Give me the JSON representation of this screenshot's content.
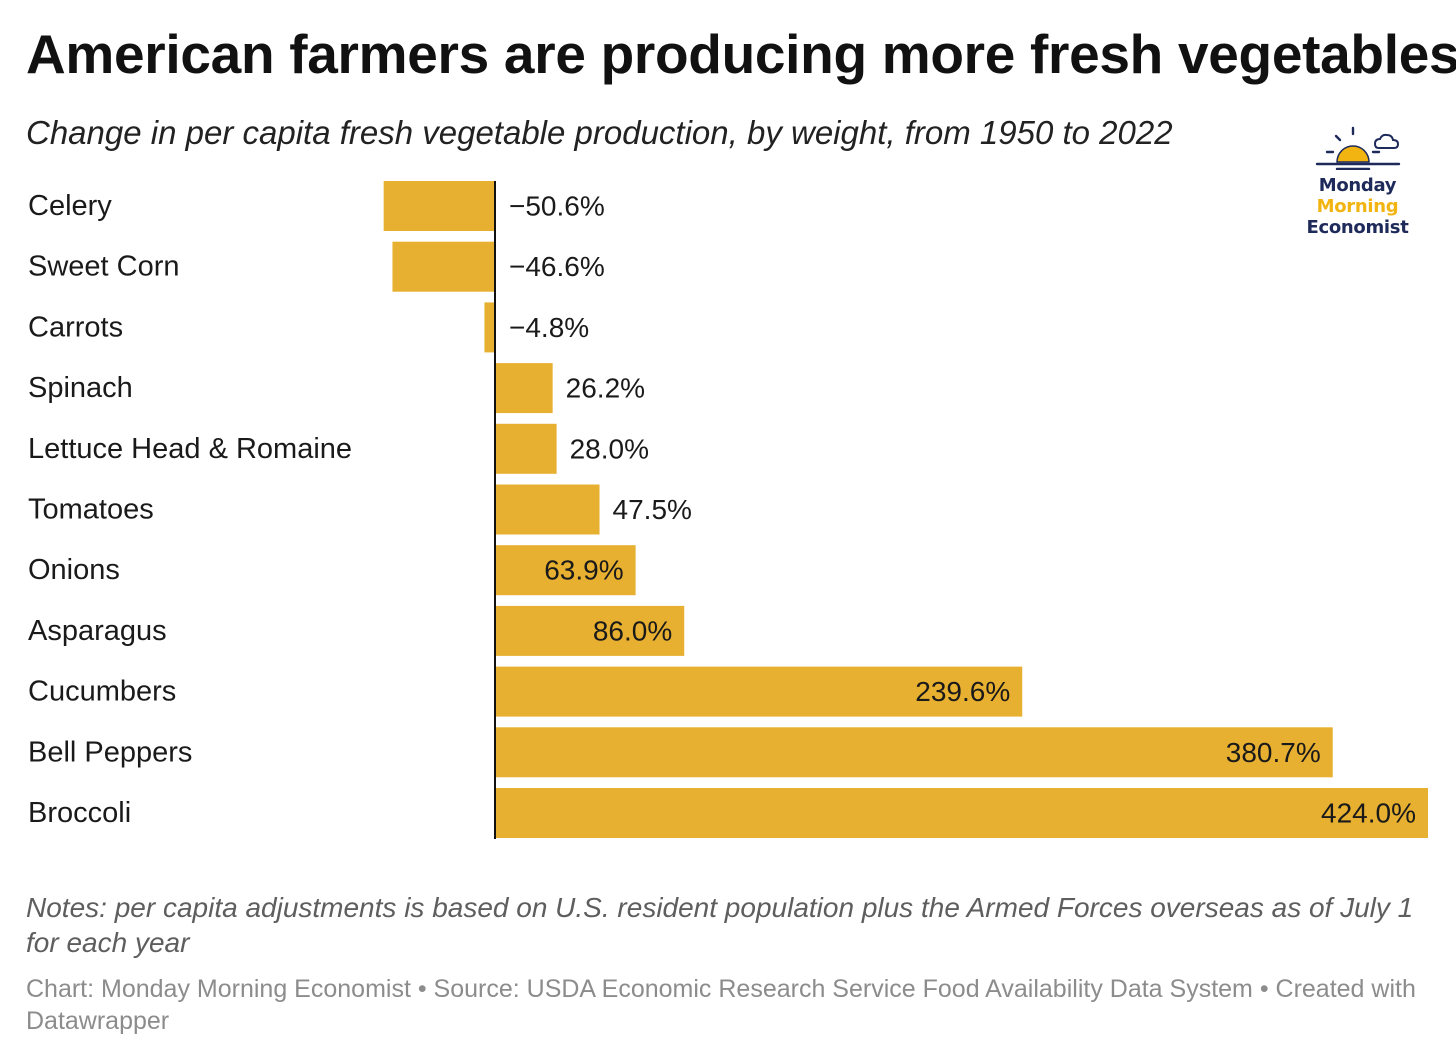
{
  "header": {
    "title": "American farmers are producing more fresh vegetables",
    "subtitle": "Change in per capita fresh vegetable production, by weight, from 1950 to 2022"
  },
  "logo": {
    "line1": "Monday",
    "line2": "Morning",
    "line3": "Economist",
    "colors": {
      "navy": "#1e2a5a",
      "gold": "#f2b411"
    }
  },
  "chart_data": {
    "type": "bar",
    "orientation": "horizontal",
    "title": "American farmers are producing more fresh vegetables",
    "subtitle": "Change in per capita fresh vegetable production, by weight, from 1950 to 2022",
    "xlabel": "",
    "ylabel": "",
    "unit": "%",
    "grid": false,
    "bar_color": "#e8b030",
    "categories": [
      "Celery",
      "Sweet Corn",
      "Carrots",
      "Spinach",
      "Lettuce Head & Romaine",
      "Tomatoes",
      "Onions",
      "Asparagus",
      "Cucumbers",
      "Bell Peppers",
      "Broccoli"
    ],
    "values": [
      -50.6,
      -46.6,
      -4.8,
      26.2,
      28.0,
      47.5,
      63.9,
      86.0,
      239.6,
      380.7,
      424.0
    ],
    "value_labels": [
      "−50.6%",
      "−46.6%",
      "−4.8%",
      "26.2%",
      "28.0%",
      "47.5%",
      "63.9%",
      "86.0%",
      "239.6%",
      "380.7%",
      "424.0%"
    ],
    "xlim": [
      -50.6,
      424.0
    ]
  },
  "footer": {
    "notes": "Notes: per capita adjustments is based on U.S. resident population plus the Armed Forces overseas as of July 1 for each year",
    "credit": "Chart: Monday Morning Economist • Source: USDA Economic Research Service Food Availability Data System • Created with Datawrapper"
  }
}
